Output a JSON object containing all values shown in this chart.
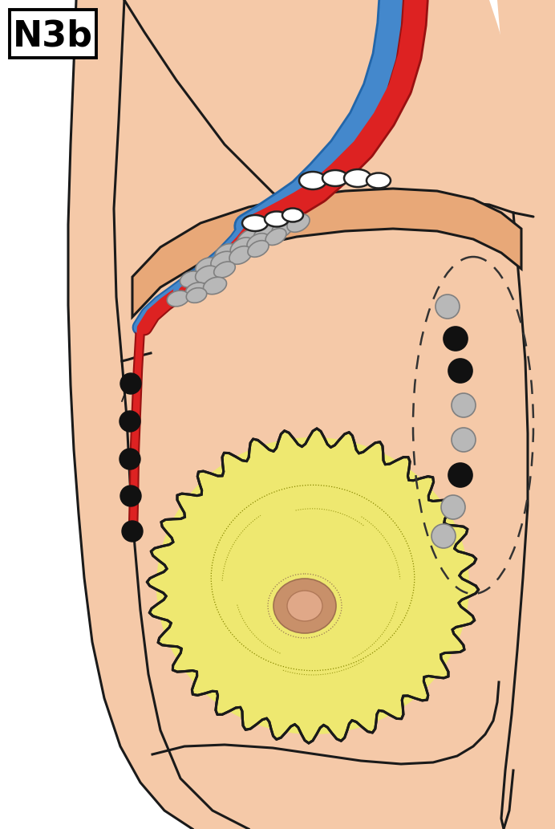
{
  "title": "N3b",
  "bg": "#FFFFFF",
  "skin": "#F5C9A8",
  "skin_light": "#FAE0CC",
  "arm_muscle": "#E8A878",
  "outline": "#1a1a1a",
  "breast_fill": "#EEE870",
  "areola_fill": "#D4956A",
  "nipple_fill": "#E8AA88",
  "blue": "#4488CC",
  "blue_dark": "#2266AA",
  "red": "#DD2222",
  "red_dark": "#991111",
  "gray_node": "#B8B8B8",
  "gray_node_edge": "#808080",
  "black_node": "#111111",
  "white_node_edge": "#222222",
  "lw": 2.2,
  "lw_vessel_main": 20,
  "lw_vessel_branch": 12,
  "lw_vessel_small": 8
}
